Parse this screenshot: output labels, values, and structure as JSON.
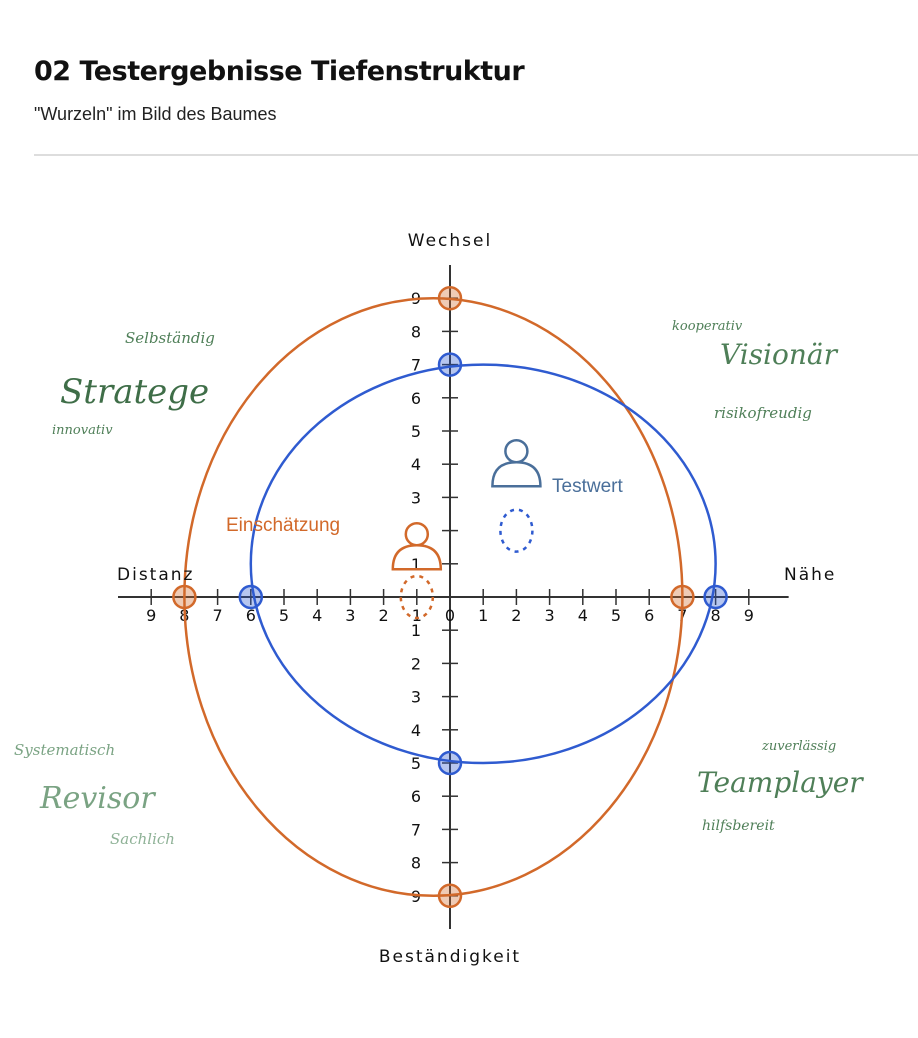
{
  "header": {
    "title": "02 Testergebnisse Tiefenstruktur",
    "subtitle": "\"Wurzeln\" im Bild des Baumes"
  },
  "axes": {
    "top": "Wechsel",
    "bottom": "Beständigkeit",
    "left": "Distanz",
    "right": "Nähe",
    "range": [
      -9,
      9
    ],
    "x_tick_labels": [
      "9",
      "8",
      "7",
      "6",
      "5",
      "4",
      "3",
      "2",
      "1",
      "0",
      "1",
      "2",
      "3",
      "4",
      "5",
      "6",
      "7",
      "8",
      "9"
    ],
    "y_tick_labels": [
      "9",
      "8",
      "7",
      "6",
      "5",
      "4",
      "3",
      "2",
      "1",
      "0",
      "1",
      "2",
      "3",
      "4",
      "5",
      "6",
      "7",
      "8",
      "9"
    ]
  },
  "colors": {
    "einschaetzung": "#d2692a",
    "testwert": "#2f5bd0",
    "testwert_label": "#4a6f9a",
    "handwriting": "#4f7f58",
    "axis": "#333333"
  },
  "series": [
    {
      "name": "Einschätzung",
      "color": "#d2692a",
      "intercepts": {
        "distanz": 8,
        "naehe": 7,
        "wechsel": 9,
        "bestaendigkeit": 9
      },
      "person": {
        "x": -1,
        "y": 1.5
      },
      "point": {
        "x": -1,
        "y": 0
      }
    },
    {
      "name": "Testwert",
      "color": "#2f5bd0",
      "intercepts": {
        "distanz": 6,
        "naehe": 8,
        "wechsel": 7,
        "bestaendigkeit": 5
      },
      "person": {
        "x": 2,
        "y": 4
      },
      "point": {
        "x": 2,
        "y": 2
      }
    }
  ],
  "quadrants": {
    "top_left": {
      "main": "Stratege",
      "sub1": "Selbständig",
      "sub2": "innovativ"
    },
    "top_right": {
      "main": "Visionär",
      "sub1": "kooperativ",
      "sub2": "risikofreudig"
    },
    "bottom_left": {
      "main": "Revisor",
      "sub1": "Systematisch",
      "sub2": "Sachlich"
    },
    "bottom_right": {
      "main": "Teamplayer",
      "sub1": "zuverlässig",
      "sub2": "hilfsbereit"
    }
  }
}
